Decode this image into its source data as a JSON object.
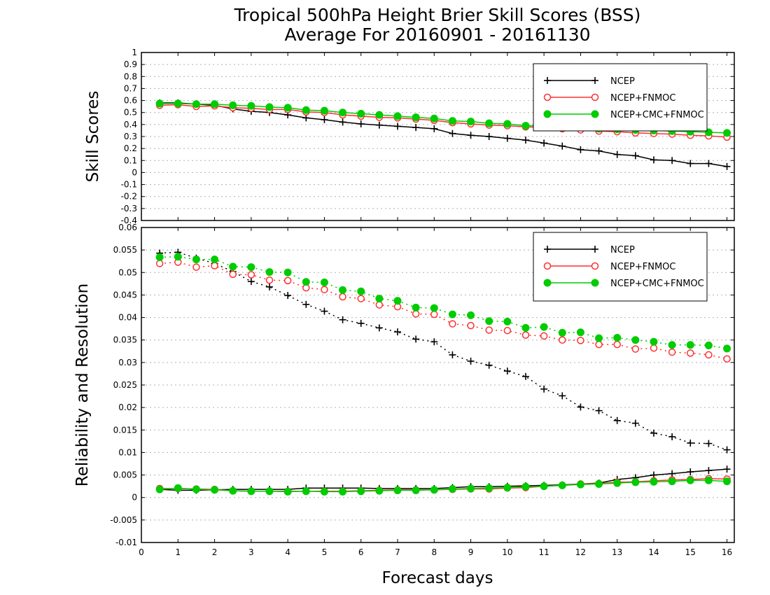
{
  "title_line1": "Tropical 500hPa Height Brier Skill Scores (BSS)",
  "title_line2": "Average For 20160901 - 20161130",
  "xlabel": "Forecast days",
  "colors": {
    "NCEP": "#000000",
    "NCEP+FNMOC": "#ff3030",
    "NCEP+CMC+FNMOC": "#00cc00"
  },
  "chart_data": [
    {
      "type": "line",
      "panel": "top",
      "ylabel": "Skill Scores",
      "xlim": [
        0,
        16.2
      ],
      "ylim": [
        -0.4,
        1
      ],
      "xticks": [
        "0",
        "1",
        "2",
        "3",
        "4",
        "5",
        "6",
        "7",
        "8",
        "9",
        "10",
        "11",
        "12",
        "13",
        "14",
        "15",
        "16"
      ],
      "yticks": [
        "-0.4",
        "-0.3",
        "-0.2",
        "-0.1",
        "0",
        "0.1",
        "0.2",
        "0.3",
        "0.4",
        "0.5",
        "0.6",
        "0.7",
        "0.8",
        "0.9",
        "1"
      ],
      "grid": "horizontal dotted",
      "legend": "top-right",
      "x": [
        0.5,
        1,
        1.5,
        2,
        2.5,
        3,
        3.5,
        4,
        4.5,
        5,
        5.5,
        6,
        6.5,
        7,
        7.5,
        8,
        8.5,
        9,
        9.5,
        10,
        10.5,
        11,
        11.5,
        12,
        12.5,
        13,
        13.5,
        14,
        14.5,
        15,
        15.5,
        16
      ],
      "series": [
        {
          "name": "NCEP",
          "marker": "plus",
          "style": "solid",
          "values": [
            0.58,
            0.58,
            0.57,
            0.56,
            0.53,
            0.51,
            0.5,
            0.48,
            0.455,
            0.44,
            0.42,
            0.405,
            0.395,
            0.385,
            0.375,
            0.365,
            0.325,
            0.31,
            0.3,
            0.285,
            0.27,
            0.245,
            0.22,
            0.19,
            0.18,
            0.15,
            0.14,
            0.105,
            0.1,
            0.075,
            0.075,
            0.05
          ]
        },
        {
          "name": "NCEP+FNMOC",
          "marker": "open-circle",
          "style": "solid",
          "values": [
            0.56,
            0.565,
            0.55,
            0.555,
            0.54,
            0.535,
            0.525,
            0.525,
            0.505,
            0.5,
            0.48,
            0.47,
            0.46,
            0.455,
            0.445,
            0.435,
            0.415,
            0.405,
            0.395,
            0.39,
            0.38,
            0.375,
            0.365,
            0.355,
            0.345,
            0.34,
            0.33,
            0.325,
            0.32,
            0.31,
            0.305,
            0.295
          ]
        },
        {
          "name": "NCEP+CMC+FNMOC",
          "marker": "filled-circle",
          "style": "solid",
          "values": [
            0.575,
            0.575,
            0.57,
            0.57,
            0.56,
            0.555,
            0.545,
            0.54,
            0.52,
            0.515,
            0.5,
            0.49,
            0.48,
            0.47,
            0.46,
            0.45,
            0.43,
            0.425,
            0.41,
            0.405,
            0.39,
            0.39,
            0.385,
            0.375,
            0.365,
            0.36,
            0.355,
            0.35,
            0.345,
            0.34,
            0.335,
            0.33
          ]
        }
      ]
    },
    {
      "type": "line",
      "panel": "bottom",
      "ylabel": "Reliability and Resolution",
      "xlim": [
        0,
        16.2
      ],
      "ylim": [
        -0.01,
        0.06
      ],
      "xticks": [
        "0",
        "1",
        "2",
        "3",
        "4",
        "5",
        "6",
        "7",
        "8",
        "9",
        "10",
        "11",
        "12",
        "13",
        "14",
        "15",
        "16"
      ],
      "yticks": [
        "-0.01",
        "-0.005",
        "0",
        "0.005",
        "0.01",
        "0.015",
        "0.02",
        "0.025",
        "0.03",
        "0.035",
        "0.04",
        "0.045",
        "0.05",
        "0.055",
        "0.06"
      ],
      "grid": "horizontal dotted",
      "legend": "top-right",
      "x": [
        0.5,
        1,
        1.5,
        2,
        2.5,
        3,
        3.5,
        4,
        4.5,
        5,
        5.5,
        6,
        6.5,
        7,
        7.5,
        8,
        8.5,
        9,
        9.5,
        10,
        10.5,
        11,
        11.5,
        12,
        12.5,
        13,
        13.5,
        14,
        14.5,
        15,
        15.5,
        16
      ],
      "series": [
        {
          "name": "NCEP",
          "role": "resolution",
          "marker": "plus",
          "style": "dotted",
          "values": [
            0.0543,
            0.0545,
            0.0532,
            0.052,
            0.0502,
            0.048,
            0.0468,
            0.0449,
            0.0429,
            0.0414,
            0.0395,
            0.0387,
            0.0377,
            0.0368,
            0.0352,
            0.0346,
            0.0317,
            0.0303,
            0.0294,
            0.0281,
            0.0269,
            0.0241,
            0.0226,
            0.0201,
            0.0193,
            0.0171,
            0.0165,
            0.0143,
            0.0135,
            0.0121,
            0.012,
            0.0106
          ]
        },
        {
          "name": "NCEP+FNMOC",
          "role": "resolution",
          "marker": "open-circle",
          "style": "dotted",
          "values": [
            0.052,
            0.0523,
            0.0512,
            0.0515,
            0.0496,
            0.0495,
            0.0483,
            0.0482,
            0.0466,
            0.0462,
            0.0446,
            0.0442,
            0.0428,
            0.0424,
            0.0408,
            0.0407,
            0.0386,
            0.0382,
            0.0372,
            0.0371,
            0.0361,
            0.0359,
            0.035,
            0.0349,
            0.034,
            0.034,
            0.033,
            0.0332,
            0.0323,
            0.0321,
            0.0317,
            0.0308
          ]
        },
        {
          "name": "NCEP+CMC+FNMOC",
          "role": "resolution",
          "marker": "filled-circle",
          "style": "dotted",
          "values": [
            0.0534,
            0.0535,
            0.0529,
            0.0529,
            0.0513,
            0.0512,
            0.0501,
            0.05,
            0.0479,
            0.0478,
            0.0461,
            0.0458,
            0.0442,
            0.0437,
            0.0422,
            0.0421,
            0.0407,
            0.0405,
            0.0392,
            0.0391,
            0.0377,
            0.0379,
            0.0366,
            0.0367,
            0.0354,
            0.0355,
            0.035,
            0.0346,
            0.0339,
            0.0339,
            0.0338,
            0.0331
          ]
        },
        {
          "name": "NCEP",
          "role": "reliability",
          "marker": "plus",
          "style": "solid",
          "values": [
            0.0018,
            0.0016,
            0.0016,
            0.0017,
            0.0018,
            0.0018,
            0.0018,
            0.0018,
            0.0021,
            0.0021,
            0.0021,
            0.0021,
            0.002,
            0.002,
            0.002,
            0.002,
            0.0022,
            0.0024,
            0.0024,
            0.0025,
            0.0026,
            0.0027,
            0.0028,
            0.003,
            0.0032,
            0.004,
            0.0044,
            0.005,
            0.0053,
            0.0057,
            0.006,
            0.0063
          ]
        },
        {
          "name": "NCEP+FNMOC",
          "role": "reliability",
          "marker": "open-circle",
          "style": "solid",
          "values": [
            0.002,
            0.002,
            0.0019,
            0.0018,
            0.0015,
            0.0014,
            0.0014,
            0.0014,
            0.0014,
            0.0014,
            0.0014,
            0.0015,
            0.0016,
            0.0017,
            0.0017,
            0.0017,
            0.0018,
            0.0019,
            0.0019,
            0.0021,
            0.0022,
            0.0025,
            0.0027,
            0.003,
            0.0031,
            0.0034,
            0.0035,
            0.0037,
            0.0039,
            0.004,
            0.0042,
            0.0041
          ]
        },
        {
          "name": "NCEP+CMC+FNMOC",
          "role": "reliability",
          "marker": "filled-circle",
          "style": "solid",
          "values": [
            0.0018,
            0.0021,
            0.0018,
            0.0017,
            0.0015,
            0.0014,
            0.0014,
            0.0013,
            0.0014,
            0.0013,
            0.0013,
            0.0014,
            0.0015,
            0.0016,
            0.0016,
            0.0017,
            0.0019,
            0.002,
            0.0021,
            0.0022,
            0.0024,
            0.0025,
            0.0027,
            0.0029,
            0.003,
            0.0032,
            0.0034,
            0.0035,
            0.0036,
            0.0038,
            0.0038,
            0.0036
          ]
        }
      ]
    }
  ]
}
